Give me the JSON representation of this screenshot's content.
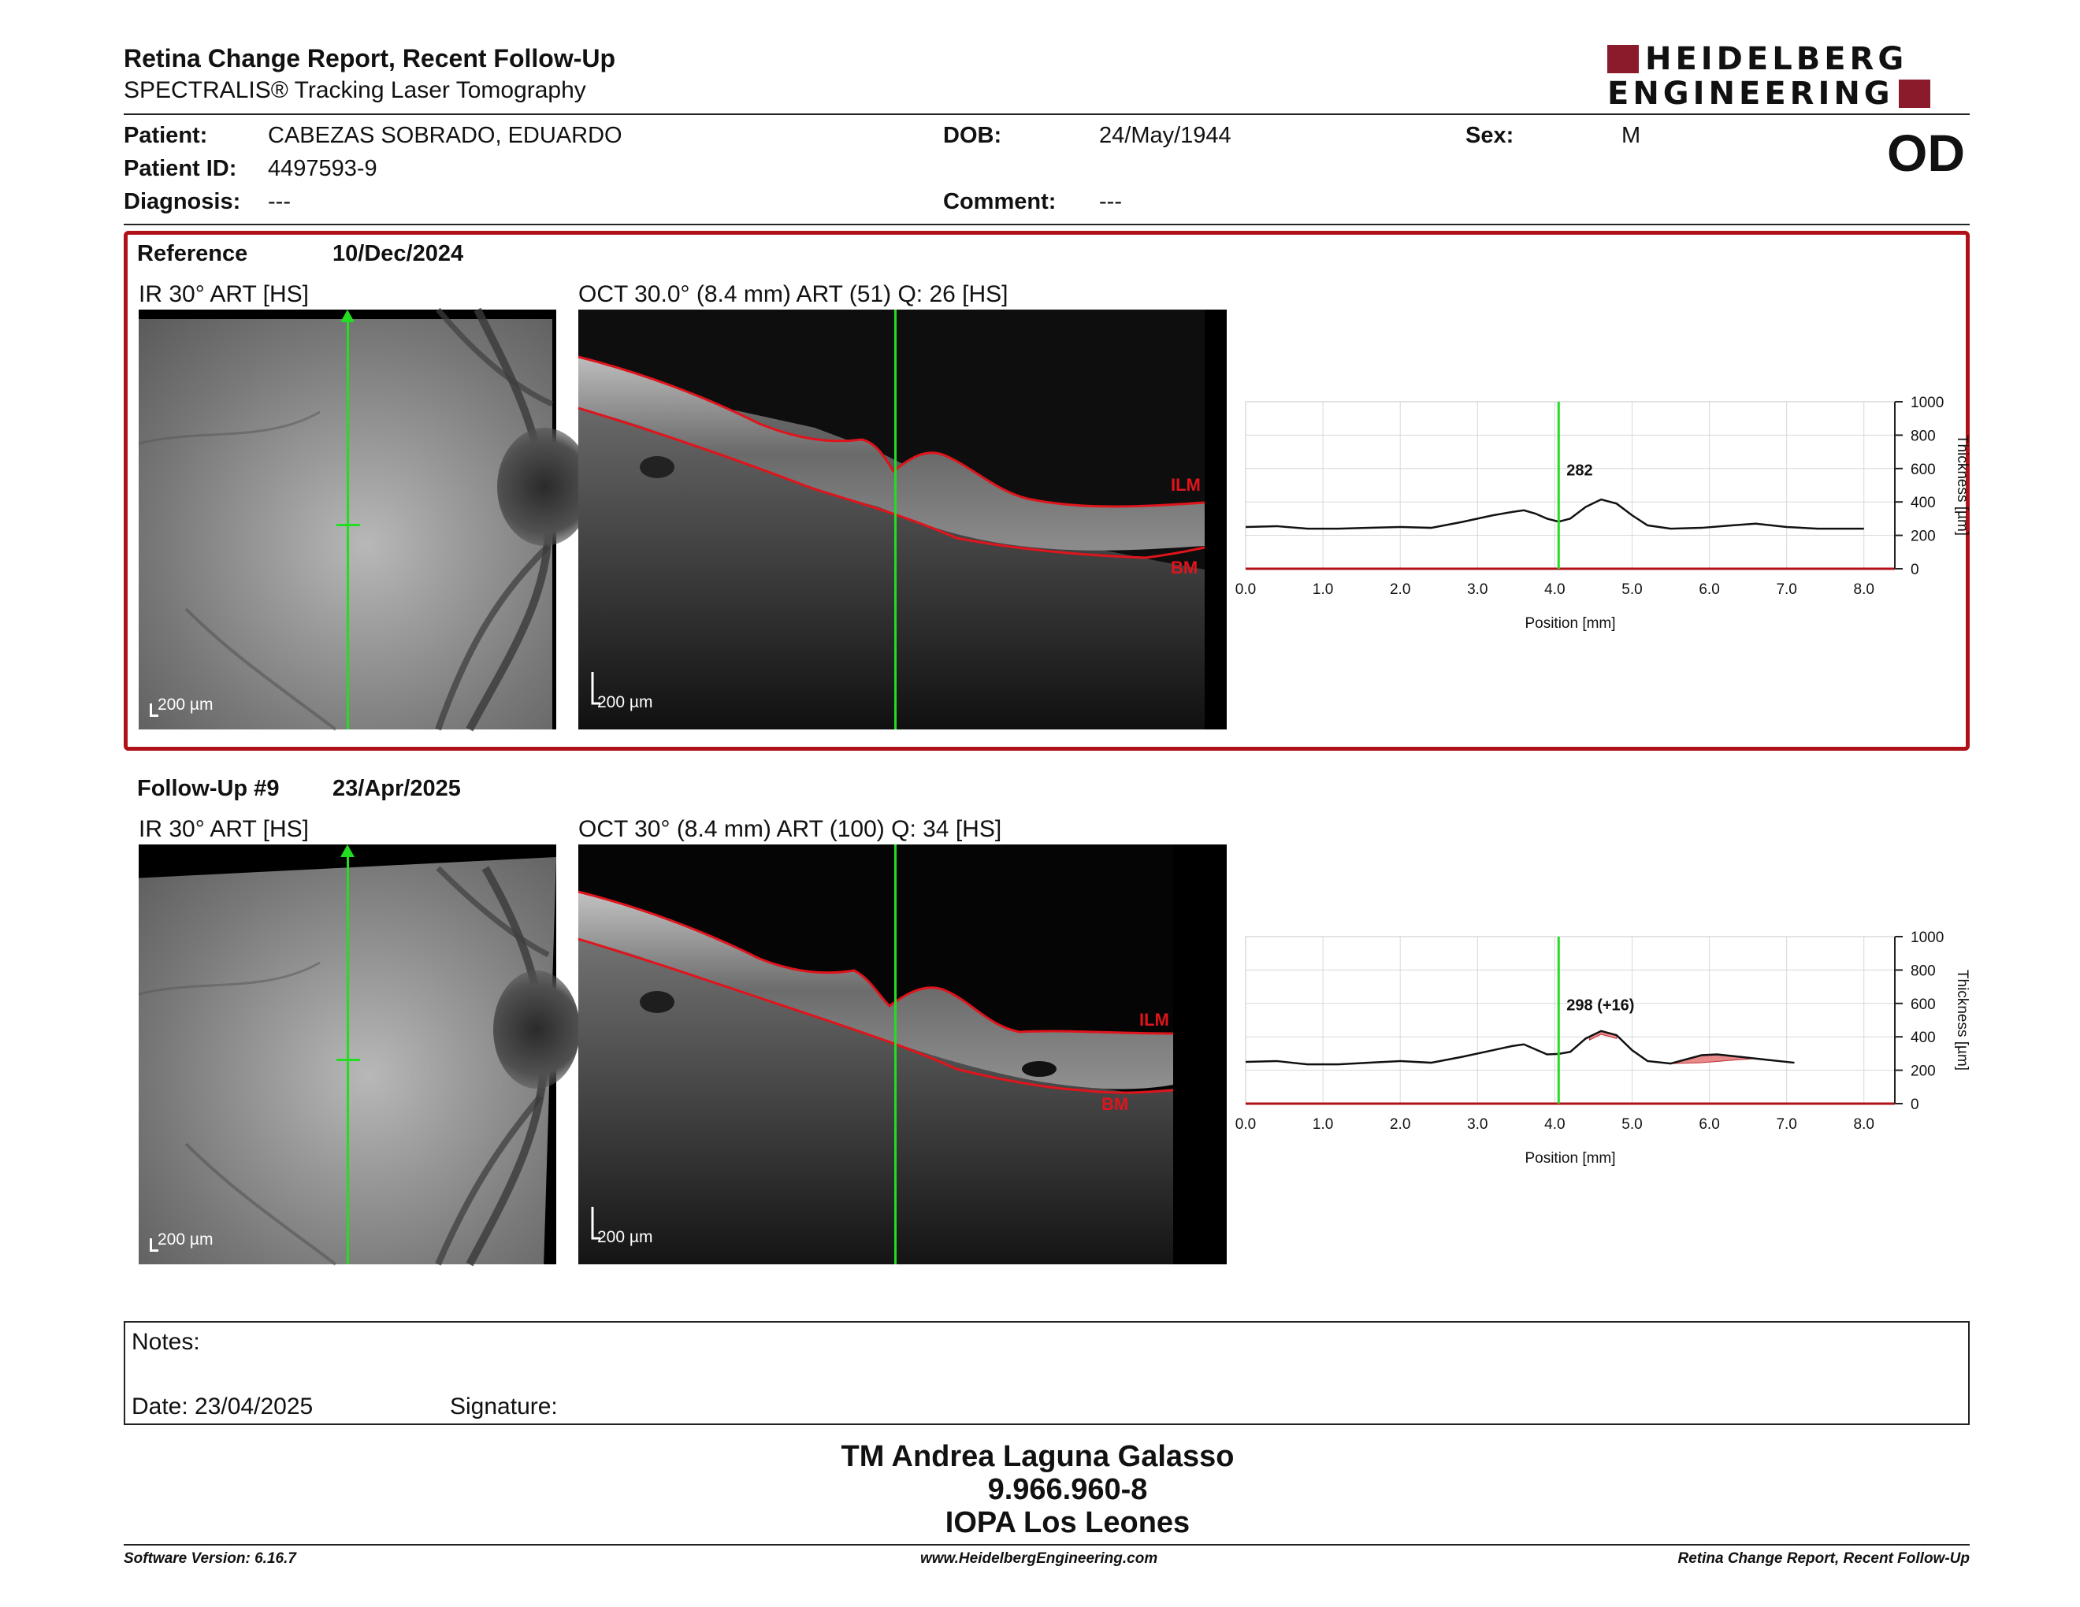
{
  "header": {
    "title": "Retina Change Report, Recent Follow-Up",
    "subtitle": "SPECTRALIS® Tracking Laser Tomography",
    "logo_line1": "HEIDELBERG",
    "logo_line2": "ENGINEERING",
    "brand_color": "#8b1a2b"
  },
  "patient": {
    "patient_label": "Patient:",
    "patient_value": "CABEZAS SOBRADO, EDUARDO",
    "id_label": "Patient ID:",
    "id_value": "4497593-9",
    "diagnosis_label": "Diagnosis:",
    "diagnosis_value": "---",
    "dob_label": "DOB:",
    "dob_value": "24/May/1944",
    "comment_label": "Comment:",
    "comment_value": "---",
    "sex_label": "Sex:",
    "sex_value": "M",
    "eye": "OD"
  },
  "reference": {
    "label": "Reference",
    "date": "10/Dec/2024",
    "ir_label": "IR 30° ART [HS]",
    "oct_label": "OCT 30.0° (8.4 mm) ART (51) Q: 26 [HS]",
    "ir_scale": "200 µm",
    "oct_scale": "200 µm",
    "ilm_label": "ILM",
    "bm_label": "BM"
  },
  "followup": {
    "label": "Follow-Up #9",
    "date": "23/Apr/2025",
    "ir_label": "IR 30° ART [HS]",
    "oct_label": "OCT 30° (8.4 mm) ART (100) Q: 34 [HS]",
    "ir_scale": "200 µm",
    "oct_scale": "200 µm",
    "ilm_label": "ILM",
    "bm_label": "BM"
  },
  "chart_data": [
    {
      "type": "line",
      "xlabel": "Position [mm]",
      "ylabel": "Thickness [µm]",
      "xlim": [
        0,
        8.4
      ],
      "ylim": [
        0,
        1000
      ],
      "xticks": [
        "0.0",
        "1.0",
        "2.0",
        "3.0",
        "4.0",
        "5.0",
        "6.0",
        "7.0",
        "8.0"
      ],
      "yticks": [
        "0",
        "200",
        "400",
        "600",
        "800",
        "1000"
      ],
      "grid": true,
      "marker_x": 4.05,
      "marker_label": "282",
      "series": [
        {
          "x": [
            0,
            0.4,
            0.8,
            1.2,
            1.6,
            2.0,
            2.4,
            2.8,
            3.2,
            3.45,
            3.6,
            3.75,
            3.9,
            4.05,
            4.2,
            4.4,
            4.6,
            4.8,
            5.0,
            5.2,
            5.5,
            5.9,
            6.3,
            6.6,
            7.0,
            7.4,
            8.0
          ],
          "y": [
            250,
            255,
            240,
            240,
            245,
            250,
            245,
            280,
            320,
            340,
            350,
            330,
            300,
            282,
            300,
            370,
            415,
            390,
            320,
            260,
            240,
            245,
            260,
            270,
            250,
            240,
            240
          ]
        }
      ]
    },
    {
      "type": "line",
      "xlabel": "Position [mm]",
      "ylabel": "Thickness [µm]",
      "xlim": [
        0,
        8.4
      ],
      "ylim": [
        0,
        1000
      ],
      "xticks": [
        "0.0",
        "1.0",
        "2.0",
        "3.0",
        "4.0",
        "5.0",
        "6.0",
        "7.0",
        "8.0"
      ],
      "yticks": [
        "0",
        "200",
        "400",
        "600",
        "800",
        "1000"
      ],
      "grid": true,
      "marker_x": 4.05,
      "marker_label": "298 (+16)",
      "series": [
        {
          "x": [
            0,
            0.4,
            0.8,
            1.2,
            1.6,
            2.0,
            2.4,
            2.8,
            3.2,
            3.45,
            3.6,
            3.75,
            3.9,
            4.05,
            4.2,
            4.4,
            4.6,
            4.8,
            5.0,
            5.2,
            5.5,
            5.9,
            6.1,
            6.4,
            6.7,
            7.1
          ],
          "y": [
            250,
            255,
            235,
            235,
            245,
            255,
            245,
            280,
            320,
            345,
            355,
            325,
            295,
            298,
            310,
            390,
            435,
            410,
            320,
            255,
            240,
            290,
            295,
            280,
            265,
            245
          ]
        }
      ],
      "increase_regions": [
        [
          5.5,
          6.7
        ],
        [
          4.45,
          4.8
        ]
      ]
    }
  ],
  "notes": {
    "notes_label": "Notes:",
    "date_label": "Date: 23/04/2025",
    "signature_label": "Signature:"
  },
  "signature_block": {
    "name": "TM Andrea Laguna Galasso",
    "id": "9.966.960-8",
    "org": "IOPA Los Leones"
  },
  "footer": {
    "software": "Software Version: 6.16.7",
    "website": "www.HeidelbergEngineering.com",
    "report_name": "Retina Change Report, Recent Follow-Up"
  }
}
